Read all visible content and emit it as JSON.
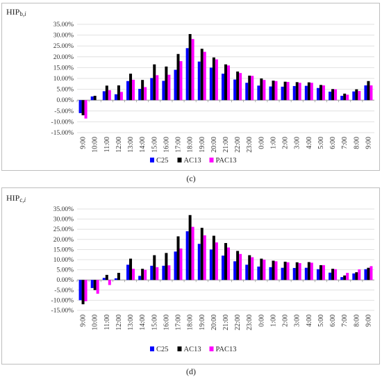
{
  "figures": [
    {
      "caption": "(c)",
      "y_label_main": "HIP",
      "y_label_sub": "b,",
      "y_label_italic": "i"
    },
    {
      "caption": "(d)",
      "y_label_main": "HIP",
      "y_label_sub": "c,",
      "y_label_italic": "i"
    }
  ],
  "chart_data": [
    {
      "type": "bar",
      "title": "",
      "ylabel": "HIPb,i",
      "xlabel": "",
      "ylim": [
        -0.15,
        0.35
      ],
      "yticks": [
        "35.00%",
        "30.00%",
        "25.00%",
        "20.00%",
        "15.00%",
        "10.00%",
        "5.00%",
        "0.00%",
        "-5.00%",
        "-10.00%",
        "-15.00%"
      ],
      "categories": [
        "9:00",
        "10:00",
        "11:00",
        "12:00",
        "13:00",
        "14:00",
        "15:00",
        "16:00",
        "17:00",
        "18:00",
        "19:00",
        "20:00",
        "21:00",
        "22:00",
        "23:00",
        "0:00",
        "1:00",
        "2:00",
        "3:00",
        "4:00",
        "5:00",
        "6:00",
        "7:00",
        "8:00",
        "9:00"
      ],
      "legend_position": "bottom",
      "series": [
        {
          "name": "C25",
          "color": "#0000ff",
          "values": [
            -0.06,
            0.017,
            0.041,
            0.027,
            0.088,
            0.052,
            0.102,
            0.089,
            0.14,
            0.24,
            0.178,
            0.15,
            0.122,
            0.095,
            0.08,
            0.067,
            0.063,
            0.062,
            0.065,
            0.066,
            0.056,
            0.039,
            0.02,
            0.04,
            0.068
          ]
        },
        {
          "name": "AC13",
          "color": "#000000",
          "values": [
            -0.07,
            0.02,
            0.067,
            0.068,
            0.122,
            0.093,
            0.165,
            0.155,
            0.213,
            0.305,
            0.237,
            0.197,
            0.165,
            0.132,
            0.113,
            0.1,
            0.09,
            0.085,
            0.083,
            0.082,
            0.07,
            0.051,
            0.03,
            0.05,
            0.088
          ]
        },
        {
          "name": "PAC13",
          "color": "#ff00ff",
          "values": [
            -0.085,
            0.0,
            0.046,
            0.038,
            0.094,
            0.06,
            0.115,
            0.117,
            0.18,
            0.282,
            0.223,
            0.188,
            0.16,
            0.125,
            0.112,
            0.093,
            0.088,
            0.084,
            0.08,
            0.08,
            0.068,
            0.05,
            0.025,
            0.042,
            0.068
          ]
        }
      ]
    },
    {
      "type": "bar",
      "title": "",
      "ylabel": "HIPc,i",
      "xlabel": "",
      "ylim": [
        -0.15,
        0.35
      ],
      "yticks": [
        "35.00%",
        "30.00%",
        "25.00%",
        "20.00%",
        "15.00%",
        "10.00%",
        "5.00%",
        "0.00%",
        "-5.00%",
        "-10.00%",
        "-15.00%"
      ],
      "categories": [
        "9:00",
        "10:00",
        "11:00",
        "12:00",
        "13:00",
        "14:00",
        "15:00",
        "16:00",
        "17:00",
        "18:00",
        "19:00",
        "20:00",
        "21:00",
        "22:00",
        "23:00",
        "0:00",
        "1:00",
        "2:00",
        "3:00",
        "4:00",
        "5:00",
        "6:00",
        "7:00",
        "8:00",
        "9:00"
      ],
      "legend_position": "bottom",
      "series": [
        {
          "name": "C25",
          "color": "#0000ff",
          "values": [
            -0.1,
            -0.04,
            0.01,
            0.008,
            0.075,
            0.02,
            0.07,
            0.07,
            0.14,
            0.24,
            0.178,
            0.15,
            0.12,
            0.092,
            0.075,
            0.066,
            0.063,
            0.06,
            0.059,
            0.06,
            0.053,
            0.036,
            0.014,
            0.032,
            0.053
          ]
        },
        {
          "name": "AC13",
          "color": "#000000",
          "values": [
            -0.12,
            -0.05,
            0.025,
            0.035,
            0.105,
            0.055,
            0.122,
            0.133,
            0.215,
            0.32,
            0.257,
            0.218,
            0.182,
            0.143,
            0.122,
            0.105,
            0.095,
            0.09,
            0.087,
            0.088,
            0.073,
            0.055,
            0.022,
            0.038,
            0.06
          ]
        },
        {
          "name": "PAC13",
          "color": "#ff00ff",
          "values": [
            -0.105,
            -0.068,
            -0.025,
            0.0,
            0.055,
            0.05,
            0.063,
            0.072,
            0.155,
            0.262,
            0.22,
            0.185,
            0.16,
            0.128,
            0.112,
            0.1,
            0.092,
            0.087,
            0.083,
            0.085,
            0.073,
            0.053,
            0.035,
            0.052,
            0.068
          ]
        }
      ]
    }
  ]
}
